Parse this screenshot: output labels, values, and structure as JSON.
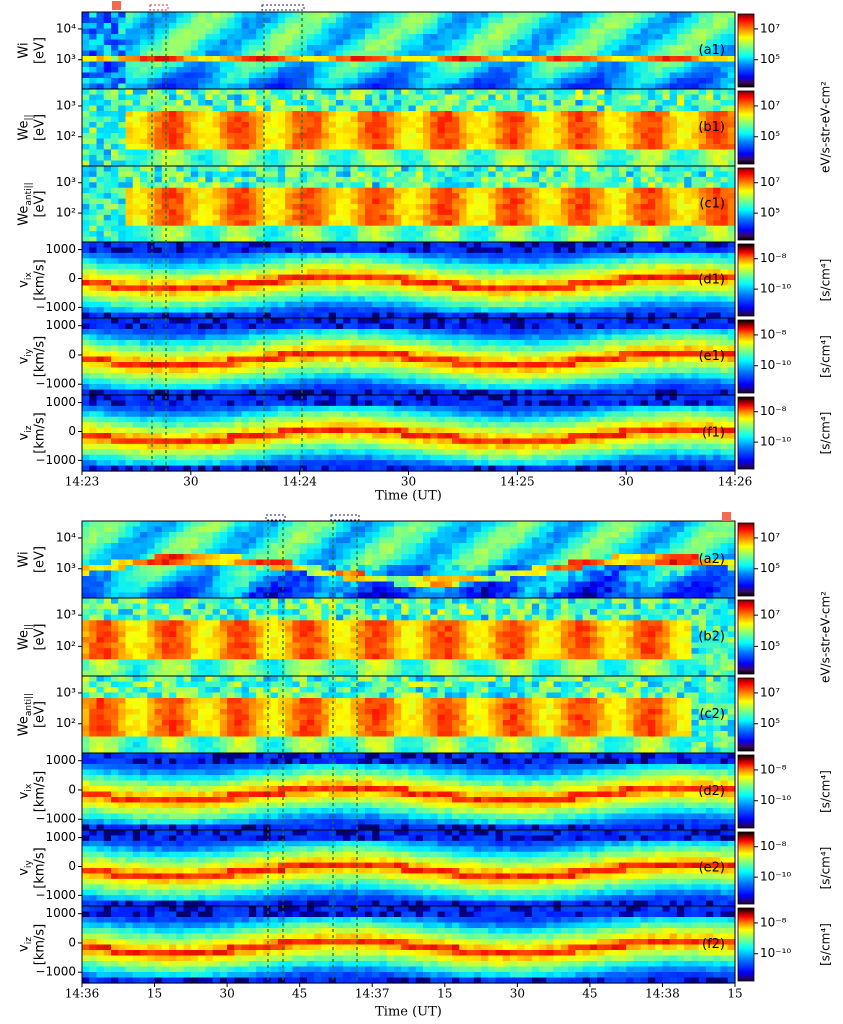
{
  "figures": [
    {
      "id": "top",
      "xlabel": "Time (UT)",
      "xticks": [
        "14:23",
        "30",
        "14:24",
        "30",
        "14:25",
        "30",
        "14:26"
      ],
      "panels": [
        {
          "tag": "(a1)",
          "ylabel": [
            "Wi",
            "[eV]"
          ],
          "ylabel_sub": [
            "",
            ""
          ],
          "kind": "energy_ion",
          "yticks": [
            "10⁴",
            "10³"
          ],
          "cb_ticks": [
            "10⁷",
            "10⁵"
          ],
          "cb_label": "eV/s-str-eV-cm²"
        },
        {
          "tag": "(b1)",
          "ylabel": [
            "We",
            "[eV]"
          ],
          "ylabel_sub": [
            "||",
            ""
          ],
          "kind": "energy_e",
          "yticks": [
            "10³",
            "10²"
          ],
          "cb_ticks": [
            "10⁷",
            "10⁵"
          ],
          "cb_label": ""
        },
        {
          "tag": "(c1)",
          "ylabel": [
            "We",
            "[eV]"
          ],
          "ylabel_sub": [
            "anti||",
            ""
          ],
          "kind": "energy_e",
          "yticks": [
            "10³",
            "10²"
          ],
          "cb_ticks": [
            "10⁷",
            "10⁵"
          ],
          "cb_label": ""
        },
        {
          "tag": "(d1)",
          "ylabel": [
            "v",
            "[km/s]"
          ],
          "ylabel_sub": [
            "ix",
            ""
          ],
          "kind": "velocity",
          "yticks": [
            "1000",
            "0",
            "−1000"
          ],
          "cb_ticks": [
            "10⁻⁸",
            "10⁻¹⁰"
          ],
          "cb_label": "[s/cm⁴]"
        },
        {
          "tag": "(e1)",
          "ylabel": [
            "v",
            "[km/s]"
          ],
          "ylabel_sub": [
            "iy",
            ""
          ],
          "kind": "velocity",
          "yticks": [
            "1000",
            "0",
            "−1000"
          ],
          "cb_ticks": [
            "10⁻⁸",
            "10⁻¹⁰"
          ],
          "cb_label": "[s/cm⁴]"
        },
        {
          "tag": "(f1)",
          "ylabel": [
            "v",
            "[km/s]"
          ],
          "ylabel_sub": [
            "iz",
            ""
          ],
          "kind": "velocity",
          "yticks": [
            "1000",
            "0",
            "−1000"
          ],
          "cb_ticks": [
            "10⁻⁸",
            "10⁻¹⁰"
          ],
          "cb_label": "[s/cm⁴]"
        }
      ]
    },
    {
      "id": "bottom",
      "xlabel": "Time (UT)",
      "xticks": [
        "14:36",
        "15",
        "30",
        "45",
        "14:37",
        "15",
        "30",
        "45",
        "14:38",
        "15"
      ],
      "panels": [
        {
          "tag": "(a2)",
          "ylabel": [
            "Wi",
            "[eV]"
          ],
          "ylabel_sub": [
            "",
            ""
          ],
          "kind": "energy_ion",
          "yticks": [
            "10⁴",
            "10³"
          ],
          "cb_ticks": [
            "10⁷",
            "10⁵"
          ],
          "cb_label": "eV/s-str-eV-cm²"
        },
        {
          "tag": "(b2)",
          "ylabel": [
            "We",
            "[eV]"
          ],
          "ylabel_sub": [
            "||",
            ""
          ],
          "kind": "energy_e",
          "yticks": [
            "10³",
            "10²"
          ],
          "cb_ticks": [
            "10⁷",
            "10⁵"
          ],
          "cb_label": ""
        },
        {
          "tag": "(c2)",
          "ylabel": [
            "We",
            "[eV]"
          ],
          "ylabel_sub": [
            "anti||",
            ""
          ],
          "kind": "energy_e",
          "yticks": [
            "10³",
            "10²"
          ],
          "cb_ticks": [
            "10⁷",
            "10⁵"
          ],
          "cb_label": ""
        },
        {
          "tag": "(d2)",
          "ylabel": [
            "v",
            "[km/s]"
          ],
          "ylabel_sub": [
            "ix",
            ""
          ],
          "kind": "velocity",
          "yticks": [
            "1000",
            "0",
            "−1000"
          ],
          "cb_ticks": [
            "10⁻⁸",
            "10⁻¹⁰"
          ],
          "cb_label": "[s/cm⁴]"
        },
        {
          "tag": "(e2)",
          "ylabel": [
            "v",
            "[km/s]"
          ],
          "ylabel_sub": [
            "iy",
            ""
          ],
          "kind": "velocity",
          "yticks": [
            "1000",
            "0",
            "−1000"
          ],
          "cb_ticks": [
            "10⁻⁸",
            "10⁻¹⁰"
          ],
          "cb_label": "[s/cm⁴]"
        },
        {
          "tag": "(f2)",
          "ylabel": [
            "v",
            "[km/s]"
          ],
          "ylabel_sub": [
            "iz",
            ""
          ],
          "kind": "velocity",
          "yticks": [
            "1000",
            "0",
            "−1000"
          ],
          "cb_ticks": [
            "10⁻⁸",
            "10⁻¹⁰"
          ],
          "cb_label": "[s/cm⁴]"
        }
      ]
    }
  ],
  "colors": {
    "jet": [
      "#00007f",
      "#0000ff",
      "#007fff",
      "#00ffff",
      "#7fff7f",
      "#ffff00",
      "#ff7f00",
      "#ff0000",
      "#7f0000"
    ],
    "dash_green": "#1a7a1a",
    "dash_navy": "#1a237e",
    "dash_red": "#d33",
    "marker": "#f26b4f"
  },
  "chart_data": [
    {
      "type": "heatmap",
      "title": "",
      "xlabel": "Time (UT)",
      "x_range": [
        "14:23:00",
        "14:26:00"
      ],
      "panels": [
        "(a1)",
        "(b1)",
        "(c1)",
        "(d1)",
        "(e1)",
        "(f1)"
      ],
      "energy_axis": "log",
      "velocity_range_km_s": [
        -1500,
        1200
      ],
      "colorbar_energy": {
        "label": "eV/s-str-eV-cm²",
        "ticks": [
          100000,
          10000000
        ],
        "scale": "log"
      },
      "colorbar_psd": {
        "label": "[s/cm⁴]",
        "ticks": [
          1e-10,
          1e-08
        ],
        "scale": "log"
      },
      "marked_intervals_UT": [
        [
          "14:23:21",
          "14:23:27"
        ],
        [
          "14:23:46",
          "14:24:06"
        ]
      ]
    },
    {
      "type": "heatmap",
      "title": "",
      "xlabel": "Time (UT)",
      "x_range": [
        "14:36:00",
        "14:38:15"
      ],
      "panels": [
        "(a2)",
        "(b2)",
        "(c2)",
        "(d2)",
        "(e2)",
        "(f2)"
      ],
      "energy_axis": "log",
      "velocity_range_km_s": [
        -1500,
        1200
      ],
      "colorbar_energy": {
        "label": "eV/s-str-eV-cm²",
        "ticks": [
          100000,
          10000000
        ],
        "scale": "log"
      },
      "colorbar_psd": {
        "label": "[s/cm⁴]",
        "ticks": [
          1e-10,
          1e-08
        ],
        "scale": "log"
      },
      "marked_intervals_UT": [
        [
          "14:36:39",
          "14:36:43"
        ],
        [
          "14:36:51",
          "14:36:57"
        ]
      ]
    }
  ]
}
